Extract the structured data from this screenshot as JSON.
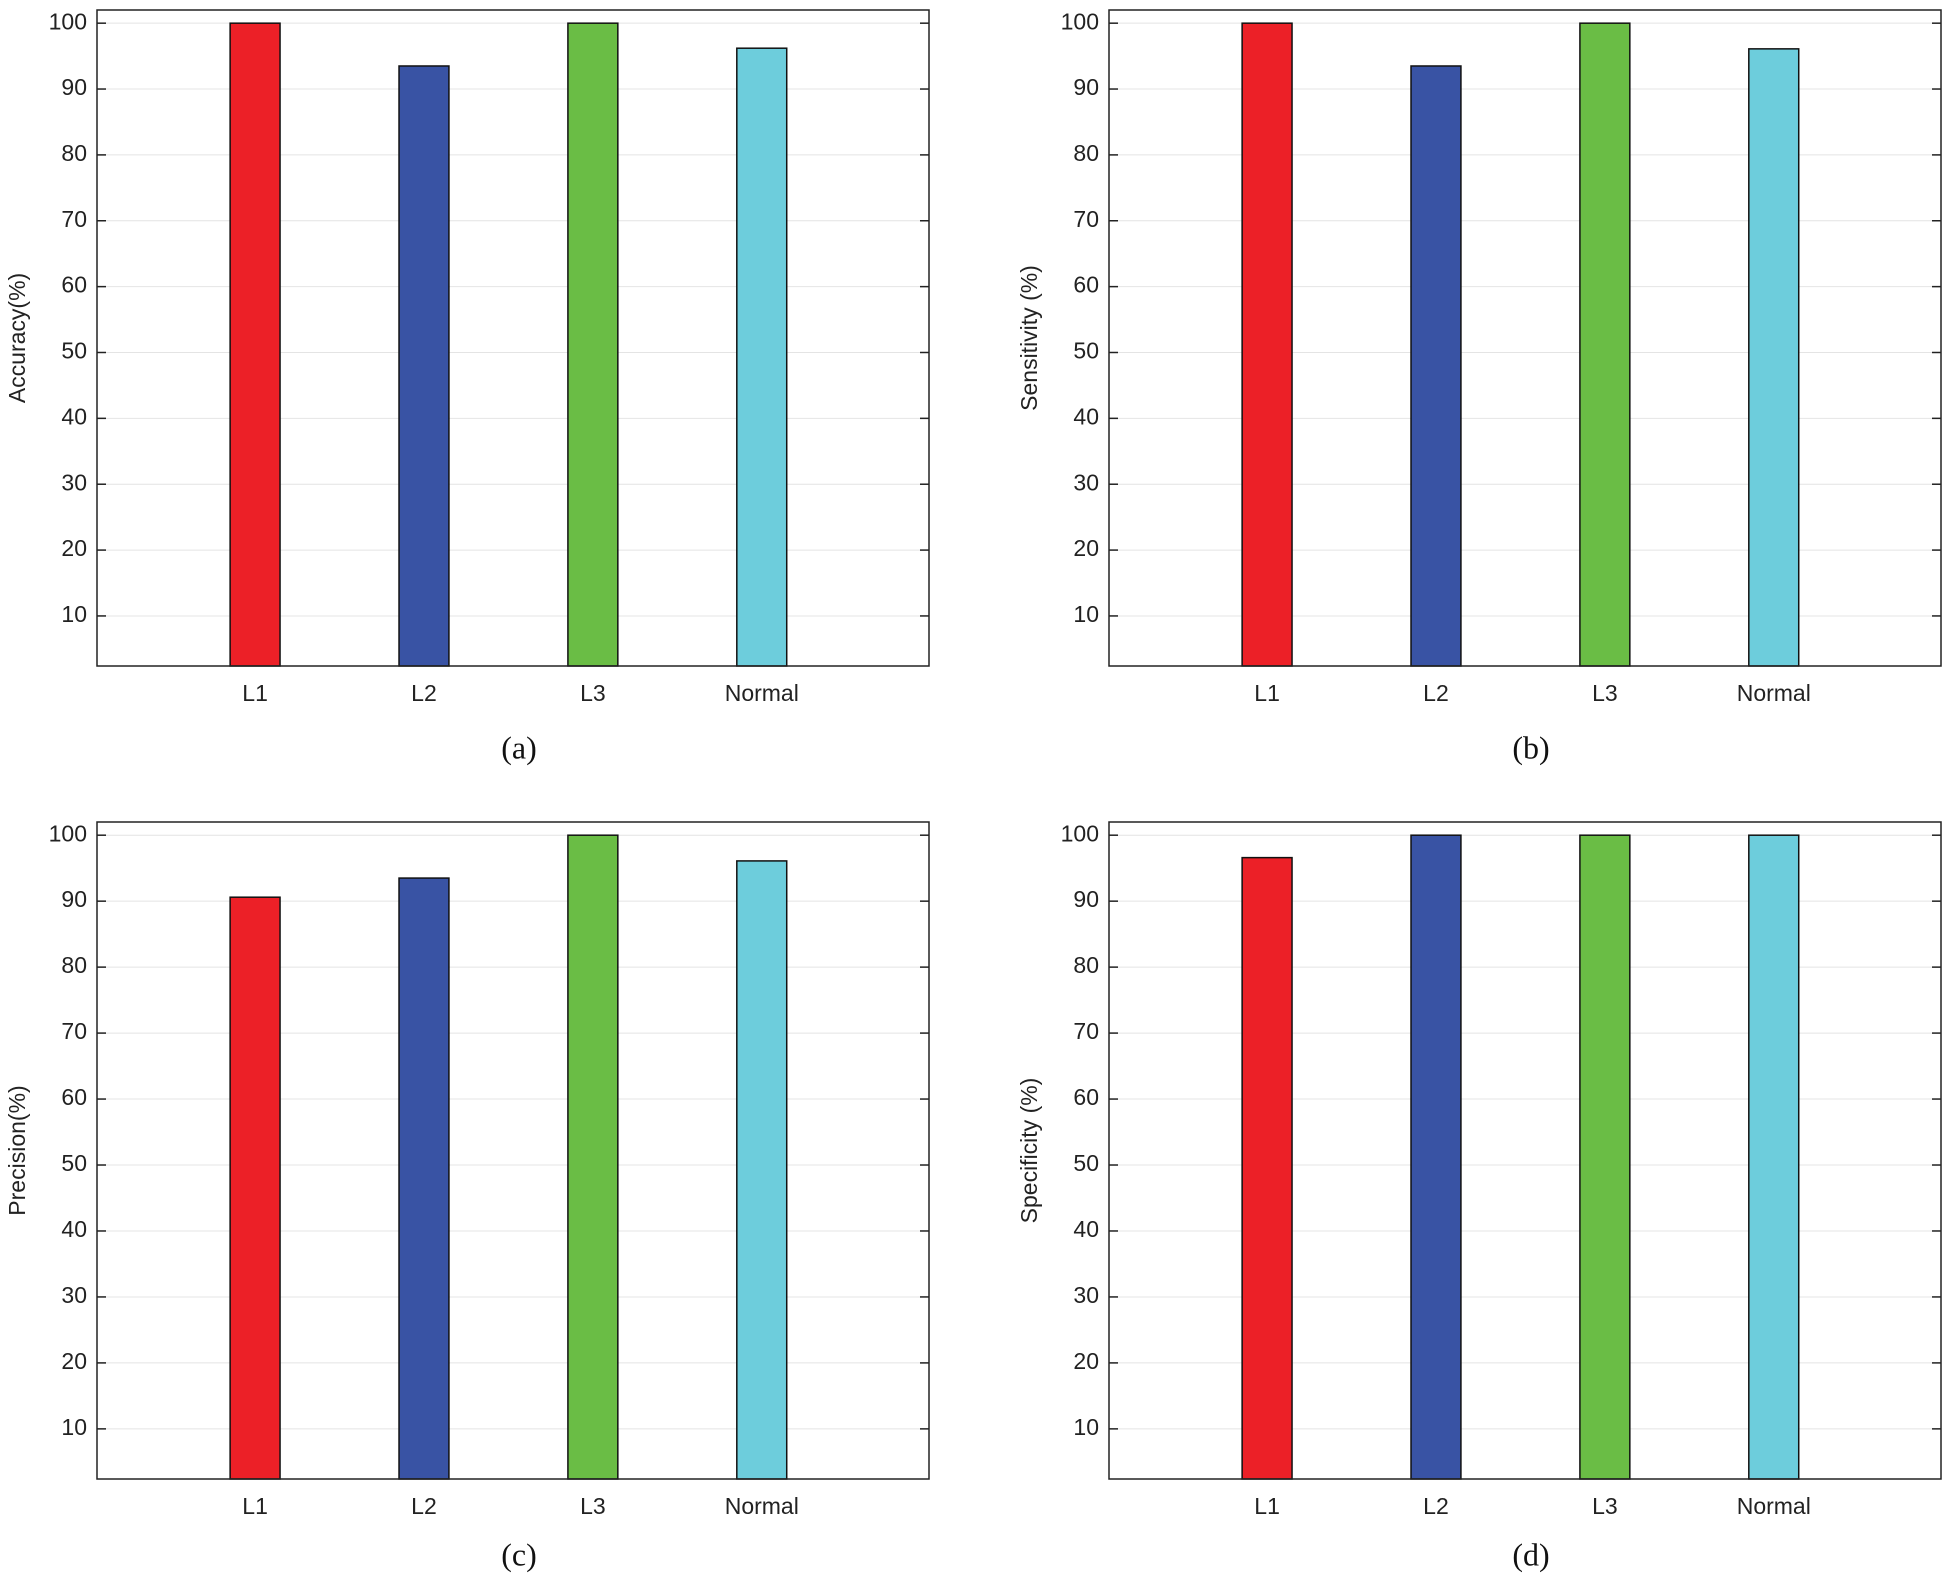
{
  "chart_data": [
    {
      "type": "bar",
      "caption": "(a)",
      "ylabel": "Accuracy(%)",
      "categories": [
        "L1",
        "L2",
        "L3",
        "Normal"
      ],
      "values": [
        100,
        93.5,
        100,
        96.2
      ],
      "colors": [
        "#ec2027",
        "#3953a4",
        "#6abd45",
        "#6dcddc"
      ],
      "ylim": [
        2.4,
        102
      ],
      "yticks": [
        10,
        20,
        30,
        40,
        50,
        60,
        70,
        80,
        90,
        100
      ],
      "grid": true
    },
    {
      "type": "bar",
      "caption": "(b)",
      "ylabel": "Sensitivity (%)",
      "categories": [
        "L1",
        "L2",
        "L3",
        "Normal"
      ],
      "values": [
        100,
        93.5,
        100,
        96.1
      ],
      "colors": [
        "#ec2027",
        "#3953a4",
        "#6abd45",
        "#6dcddc"
      ],
      "ylim": [
        2.4,
        102
      ],
      "yticks": [
        10,
        20,
        30,
        40,
        50,
        60,
        70,
        80,
        90,
        100
      ],
      "grid": true
    },
    {
      "type": "bar",
      "caption": "(c)",
      "ylabel": "Precision(%)",
      "categories": [
        "L1",
        "L2",
        "L3",
        "Normal"
      ],
      "values": [
        90.6,
        93.5,
        100,
        96.1
      ],
      "colors": [
        "#ec2027",
        "#3953a4",
        "#6abd45",
        "#6dcddc"
      ],
      "ylim": [
        2.4,
        102
      ],
      "yticks": [
        10,
        20,
        30,
        40,
        50,
        60,
        70,
        80,
        90,
        100
      ],
      "grid": true
    },
    {
      "type": "bar",
      "caption": "(d)",
      "ylabel": "Specificity (%)",
      "categories": [
        "L1",
        "L2",
        "L3",
        "Normal"
      ],
      "values": [
        96.6,
        100,
        100,
        100
      ],
      "colors": [
        "#ec2027",
        "#3953a4",
        "#6abd45",
        "#6dcddc"
      ],
      "ylim": [
        2.4,
        102
      ],
      "yticks": [
        10,
        20,
        30,
        40,
        50,
        60,
        70,
        80,
        90,
        100
      ],
      "grid": true
    }
  ]
}
